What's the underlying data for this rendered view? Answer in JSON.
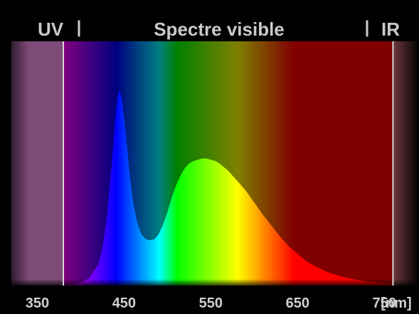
{
  "chart_data": {
    "type": "area",
    "title": "Spectre visible",
    "region_labels": {
      "uv": "UV",
      "visible": "Spectre visible",
      "ir": "IR"
    },
    "x_unit": "[nm]",
    "xlim": [
      307,
      790
    ],
    "ylim": [
      0,
      1
    ],
    "x_ticks": [
      350,
      450,
      550,
      650,
      750
    ],
    "visible_range": [
      380,
      760
    ],
    "uv_band": [
      320,
      380
    ],
    "ir_band": [
      760,
      790
    ],
    "grid": false,
    "series": [
      {
        "x": [
          380,
          390,
          400,
          410,
          420,
          425,
          430,
          435,
          440,
          443,
          445,
          448,
          452,
          456,
          460,
          465,
          470,
          475,
          480,
          485,
          490,
          495,
          500,
          505,
          510,
          515,
          520,
          525,
          530,
          535,
          540,
          545,
          550,
          555,
          560,
          570,
          580,
          590,
          600,
          610,
          620,
          630,
          640,
          650,
          660,
          670,
          680,
          690,
          700,
          710,
          720,
          730,
          740,
          750,
          760
        ],
        "values": [
          0.0,
          0.004,
          0.012,
          0.03,
          0.085,
          0.15,
          0.27,
          0.46,
          0.68,
          0.78,
          0.8,
          0.75,
          0.62,
          0.47,
          0.35,
          0.26,
          0.21,
          0.19,
          0.185,
          0.19,
          0.21,
          0.25,
          0.3,
          0.36,
          0.41,
          0.45,
          0.48,
          0.5,
          0.51,
          0.515,
          0.52,
          0.52,
          0.515,
          0.51,
          0.5,
          0.47,
          0.43,
          0.39,
          0.34,
          0.29,
          0.245,
          0.2,
          0.16,
          0.13,
          0.1,
          0.08,
          0.062,
          0.048,
          0.037,
          0.029,
          0.022,
          0.017,
          0.013,
          0.01,
          0.008
        ]
      }
    ]
  }
}
